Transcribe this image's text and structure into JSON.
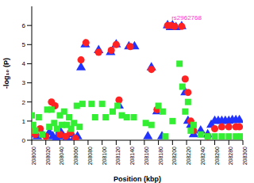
{
  "chart_data": {
    "type": "scatter",
    "x_label": "Position (kbp)",
    "y_label": "-log₁₀ (P)",
    "xlim": [
      208000,
      208300
    ],
    "xticks": [
      208000,
      208020,
      208040,
      208060,
      208080,
      208100,
      208120,
      208140,
      208160,
      208180,
      208200,
      208220,
      208240,
      208260,
      208280,
      208300
    ],
    "ylim": [
      0,
      7
    ],
    "yticks": [
      0,
      1,
      2,
      3,
      4,
      5,
      6
    ],
    "grid": false,
    "annotations": [
      {
        "text": "rs2962768",
        "x": 208220,
        "y": 6.4,
        "color": "#ff33cc"
      }
    ],
    "series": [
      {
        "color": "#2233ff",
        "marker": "triangle",
        "x": [
          208000,
          208003,
          208008,
          208015,
          208025,
          208030,
          208035,
          208040,
          208045,
          208050,
          208055,
          208060,
          208065,
          208070,
          208076,
          208095,
          208112,
          208120,
          208124,
          208138,
          208146,
          208165,
          208170,
          208178,
          208185,
          208193,
          208197,
          208200,
          208205,
          208213,
          208218,
          208222,
          208226,
          208230,
          208240,
          208250,
          208255,
          208260,
          208265,
          208270,
          208275,
          208280,
          208285,
          208290,
          208295
        ],
        "values": [
          0.6,
          0.3,
          0.2,
          0.3,
          0.4,
          0.2,
          0.1,
          0.5,
          0.2,
          0.1,
          0.3,
          0.1,
          0.2,
          3.8,
          5.0,
          4.7,
          4.6,
          5.0,
          1.8,
          4.9,
          4.9,
          0.2,
          3.8,
          1.5,
          0.2,
          6.0,
          5.9,
          6.0,
          5.9,
          5.95,
          2.5,
          1.0,
          0.8,
          0.3,
          0.5,
          0.3,
          0.8,
          1.0,
          1.0,
          1.0,
          1.0,
          1.0,
          1.05,
          1.05,
          1.05
        ]
      },
      {
        "color": "#ff2222",
        "marker": "circle",
        "x": [
          208000,
          208005,
          208012,
          208020,
          208028,
          208033,
          208040,
          208048,
          208055,
          208062,
          208070,
          208077,
          208095,
          208113,
          208120,
          208124,
          208140,
          208170,
          208178,
          208193,
          208198,
          208203,
          208213,
          208218,
          208222,
          208226,
          208230,
          208250,
          208260,
          208270,
          208280,
          208290,
          208295
        ],
        "values": [
          0.5,
          0.3,
          0.6,
          0.2,
          2.0,
          1.8,
          0.3,
          0.2,
          0.4,
          0.1,
          4.2,
          5.1,
          4.6,
          4.7,
          5.0,
          2.1,
          4.9,
          3.7,
          1.6,
          6.0,
          6.0,
          5.95,
          5.95,
          3.2,
          2.5,
          1.0,
          0.5,
          0.2,
          0.6,
          0.7,
          0.7,
          0.7,
          0.7
        ]
      },
      {
        "color": "#33ee33",
        "marker": "square",
        "x": [
          208000,
          208002,
          208005,
          208010,
          208015,
          208022,
          208025,
          208028,
          208032,
          208036,
          208040,
          208043,
          208046,
          208050,
          208053,
          208056,
          208060,
          208064,
          208068,
          208072,
          208085,
          208090,
          208100,
          208105,
          208115,
          208122,
          208128,
          208135,
          208145,
          208162,
          208170,
          208180,
          208186,
          208190,
          208200,
          208210,
          208214,
          208218,
          208222,
          208226,
          208230,
          208240,
          208250,
          208260,
          208270,
          208280,
          208290,
          208298
        ],
        "values": [
          1.3,
          0.8,
          0.5,
          1.2,
          0.3,
          1.6,
          0.7,
          1.6,
          0.9,
          0.6,
          1.3,
          0.8,
          1.5,
          0.8,
          1.2,
          0.6,
          0.9,
          1.8,
          0.7,
          1.9,
          1.9,
          1.2,
          1.9,
          1.2,
          1.5,
          1.8,
          1.3,
          1.2,
          1.2,
          0.9,
          0.8,
          1.8,
          1.5,
          0.2,
          1.0,
          4.0,
          2.8,
          1.5,
          2.0,
          0.5,
          0.8,
          0.3,
          0.2,
          0.2,
          0.2,
          0.2,
          0.2,
          0.2
        ]
      }
    ]
  }
}
